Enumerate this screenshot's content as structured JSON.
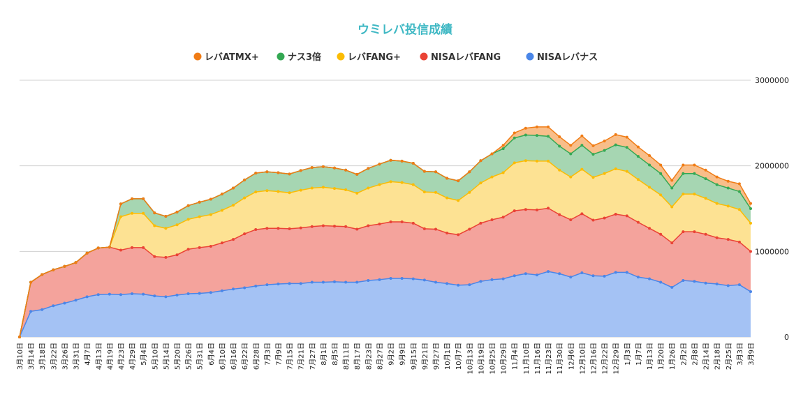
{
  "chart_data": {
    "type": "area",
    "stacked": true,
    "title": "ウミレバ投信成績",
    "xlabel": "",
    "ylabel": "",
    "ylim": [
      0,
      3000000
    ],
    "yticks": [
      0,
      1000000,
      2000000,
      3000000
    ],
    "ytick_labels": [
      "0",
      "1000000",
      "2000000",
      "3000000"
    ],
    "grid": true,
    "legend_position": "top",
    "x_tick_labels": [
      "3月10日",
      "3月14日",
      "3月18日",
      "3月22日",
      "3月26日",
      "3月31日",
      "4月7日",
      "4月13日",
      "4月19日",
      "4月23日",
      "4月29日",
      "5月4日",
      "5月10日",
      "5月14日",
      "5月20日",
      "5月26日",
      "5月31日",
      "6月4日",
      "6月10日",
      "6月16日",
      "6月22日",
      "6月28日",
      "7月3日",
      "7月9日",
      "7月15日",
      "7月21日",
      "7月27日",
      "8月1日",
      "8月5日",
      "8月11日",
      "8月17日",
      "8月23日",
      "8月27日",
      "9月2日",
      "9月9日",
      "9月15日",
      "9月21日",
      "9月27日",
      "10月1日",
      "10月7日",
      "10月13日",
      "10月19日",
      "10月25日",
      "10月29日",
      "11月4日",
      "11月10日",
      "11月16日",
      "11月23日",
      "11月30日",
      "12月6日",
      "12月10日",
      "12月16日",
      "12月22日",
      "12月29日",
      "1月3日",
      "1月7日",
      "1月13日",
      "1月20日",
      "1月26日",
      "2月2日",
      "2月8日",
      "2月14日",
      "2月18日",
      "2月25日",
      "3月3日",
      "3月9日"
    ],
    "series": [
      {
        "name": "NISAレバナス",
        "color": "#4a86e8",
        "fill": "#a4c2f4",
        "values": [
          0,
          300000,
          320000,
          365000,
          395000,
          430000,
          470000,
          495000,
          500000,
          495000,
          505000,
          500000,
          480000,
          470000,
          490000,
          505000,
          510000,
          520000,
          540000,
          560000,
          575000,
          595000,
          610000,
          620000,
          625000,
          625000,
          640000,
          640000,
          645000,
          640000,
          640000,
          660000,
          670000,
          685000,
          685000,
          680000,
          665000,
          640000,
          625000,
          605000,
          610000,
          650000,
          670000,
          680000,
          715000,
          740000,
          725000,
          765000,
          740000,
          700000,
          750000,
          715000,
          710000,
          755000,
          755000,
          700000,
          680000,
          640000,
          580000,
          660000,
          650000,
          630000,
          620000,
          600000,
          610000,
          530000
        ]
      },
      {
        "name": "NISAレバFANG",
        "color": "#ea4335",
        "fill": "#f4a39c",
        "values": [
          0,
          340000,
          410000,
          420000,
          430000,
          440000,
          510000,
          545000,
          550000,
          520000,
          540000,
          545000,
          460000,
          460000,
          470000,
          520000,
          535000,
          540000,
          560000,
          580000,
          630000,
          660000,
          660000,
          650000,
          640000,
          650000,
          650000,
          660000,
          650000,
          650000,
          620000,
          640000,
          650000,
          660000,
          660000,
          650000,
          600000,
          620000,
          590000,
          590000,
          650000,
          680000,
          700000,
          720000,
          760000,
          750000,
          760000,
          740000,
          690000,
          670000,
          690000,
          650000,
          680000,
          680000,
          660000,
          640000,
          590000,
          560000,
          520000,
          570000,
          580000,
          570000,
          540000,
          540000,
          500000,
          470000
        ]
      },
      {
        "name": "レバFANG+",
        "color": "#fbbc04",
        "fill": "#fde293",
        "values": [
          0,
          0,
          0,
          0,
          0,
          0,
          0,
          0,
          0,
          390000,
          400000,
          400000,
          360000,
          340000,
          350000,
          350000,
          360000,
          370000,
          380000,
          400000,
          420000,
          440000,
          440000,
          430000,
          420000,
          440000,
          450000,
          450000,
          440000,
          430000,
          420000,
          440000,
          460000,
          470000,
          460000,
          450000,
          430000,
          430000,
          410000,
          400000,
          430000,
          470000,
          500000,
          520000,
          560000,
          570000,
          570000,
          550000,
          520000,
          500000,
          520000,
          500000,
          520000,
          530000,
          520000,
          500000,
          480000,
          460000,
          420000,
          440000,
          440000,
          420000,
          400000,
          390000,
          380000,
          330000
        ]
      },
      {
        "name": "ナス3倍",
        "color": "#34a853",
        "fill": "#a6d6b2",
        "values": [
          0,
          0,
          0,
          0,
          0,
          0,
          0,
          0,
          0,
          150000,
          170000,
          170000,
          150000,
          140000,
          150000,
          160000,
          170000,
          180000,
          190000,
          200000,
          210000,
          220000,
          220000,
          220000,
          220000,
          230000,
          240000,
          240000,
          240000,
          230000,
          220000,
          230000,
          240000,
          250000,
          250000,
          250000,
          240000,
          240000,
          230000,
          230000,
          240000,
          260000,
          270000,
          280000,
          290000,
          300000,
          300000,
          290000,
          280000,
          270000,
          280000,
          270000,
          270000,
          280000,
          280000,
          270000,
          260000,
          250000,
          220000,
          240000,
          240000,
          230000,
          220000,
          210000,
          210000,
          170000
        ]
      },
      {
        "name": "レバATMX+",
        "color": "#f07c15",
        "fill": "#f8be8a",
        "values": [
          0,
          0,
          0,
          0,
          0,
          0,
          0,
          0,
          0,
          0,
          0,
          0,
          0,
          0,
          0,
          0,
          0,
          0,
          0,
          0,
          0,
          0,
          0,
          0,
          0,
          0,
          0,
          0,
          0,
          0,
          0,
          0,
          0,
          0,
          0,
          0,
          0,
          0,
          0,
          0,
          0,
          0,
          0,
          40000,
          60000,
          80000,
          100000,
          110000,
          110000,
          100000,
          110000,
          100000,
          110000,
          120000,
          120000,
          110000,
          110000,
          100000,
          90000,
          100000,
          100000,
          100000,
          90000,
          80000,
          90000,
          60000
        ]
      }
    ]
  }
}
